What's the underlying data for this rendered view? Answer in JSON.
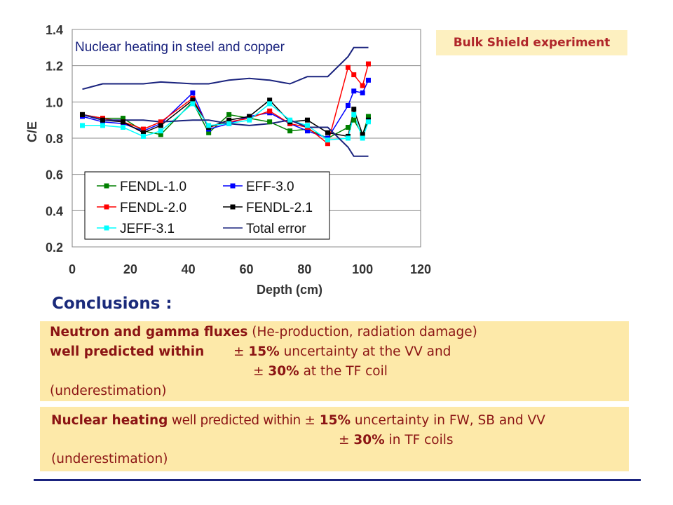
{
  "badge": "Bulk Shield experiment",
  "chart_data": {
    "type": "line",
    "title": "Nuclear heating in steel and copper",
    "xlabel": "Depth (cm)",
    "ylabel": "C/E",
    "xlim": [
      0,
      120
    ],
    "ylim": [
      0.2,
      1.4
    ],
    "xticks": [
      "0",
      "20",
      "40",
      "60",
      "80",
      "100",
      "120"
    ],
    "yticks": [
      "0.2",
      "0.4",
      "0.6",
      "0.8",
      "1.0",
      "1.2",
      "1.4"
    ],
    "grid": "horizontal",
    "legend_position": "bottom-left",
    "series": [
      {
        "name": "FENDL-1.0",
        "color": "#008000",
        "marker": "square",
        "x": [
          3.5,
          10.5,
          17.5,
          24.5,
          30.5,
          41.5,
          47,
          54,
          61,
          68,
          75,
          81,
          88,
          95,
          97,
          100,
          102
        ],
        "y": [
          0.93,
          0.91,
          0.91,
          0.84,
          0.82,
          1.0,
          0.83,
          0.93,
          0.91,
          0.89,
          0.84,
          0.85,
          0.8,
          0.86,
          0.9,
          0.82,
          0.92
        ]
      },
      {
        "name": "EFF-3.0",
        "color": "#0000ff",
        "marker": "square",
        "x": [
          3.5,
          10.5,
          17.5,
          24.5,
          30.5,
          41.5,
          47,
          54,
          61,
          68,
          75,
          81,
          88,
          95,
          97,
          100,
          102
        ],
        "y": [
          0.92,
          0.89,
          0.88,
          0.84,
          0.88,
          1.05,
          0.85,
          0.88,
          0.92,
          0.94,
          0.88,
          0.84,
          0.8,
          0.98,
          1.06,
          1.05,
          1.12
        ]
      },
      {
        "name": "FENDL-2.0",
        "color": "#ff0000",
        "marker": "square",
        "x": [
          3.5,
          10.5,
          17.5,
          24.5,
          30.5,
          41.5,
          47,
          54,
          61,
          68,
          75,
          81,
          88,
          95,
          97,
          100,
          102
        ],
        "y": [
          0.93,
          0.91,
          0.89,
          0.85,
          0.89,
          1.02,
          0.86,
          0.89,
          0.91,
          0.95,
          0.88,
          0.86,
          0.77,
          1.19,
          1.15,
          1.09,
          1.21
        ]
      },
      {
        "name": "FENDL-2.1",
        "color": "#000000",
        "marker": "square",
        "x": [
          3.5,
          10.5,
          17.5,
          24.5,
          30.5,
          41.5,
          47,
          54,
          61,
          68,
          75,
          81,
          88,
          95,
          97,
          100,
          102
        ],
        "y": [
          0.93,
          0.9,
          0.89,
          0.83,
          0.87,
          1.01,
          0.86,
          0.9,
          0.92,
          1.01,
          0.89,
          0.9,
          0.83,
          0.81,
          0.96,
          0.82,
          0.9
        ]
      },
      {
        "name": "JEFF-3.1",
        "color": "#00ffff",
        "marker": "square",
        "x": [
          3.5,
          10.5,
          17.5,
          24.5,
          30.5,
          41.5,
          47,
          54,
          61,
          68,
          75,
          81,
          88,
          95,
          97,
          100,
          102
        ],
        "y": [
          0.87,
          0.87,
          0.86,
          0.81,
          0.84,
          0.99,
          0.87,
          0.88,
          0.9,
          0.99,
          0.9,
          0.87,
          0.79,
          0.8,
          0.93,
          0.8,
          0.89
        ]
      },
      {
        "name": "Total error",
        "color": "#1a237e",
        "marker": "none",
        "x": [
          3.5,
          10.5,
          17.5,
          24.5,
          30.5,
          41.5,
          47,
          54,
          61,
          68,
          75,
          81,
          88,
          95,
          97,
          100,
          102
        ],
        "y": [
          1.07,
          1.1,
          1.1,
          1.1,
          1.11,
          1.1,
          1.1,
          1.12,
          1.13,
          1.12,
          1.1,
          1.14,
          1.14,
          1.25,
          1.3,
          1.3,
          1.3
        ]
      },
      {
        "name": "",
        "color": "#1a237e",
        "marker": "none",
        "x": [
          3.5,
          10.5,
          17.5,
          24.5,
          30.5,
          41.5,
          47,
          54,
          61,
          68,
          75,
          81,
          88,
          95,
          97,
          100,
          102
        ],
        "y": [
          0.93,
          0.9,
          0.9,
          0.9,
          0.89,
          0.9,
          0.9,
          0.88,
          0.87,
          0.88,
          0.9,
          0.86,
          0.86,
          0.75,
          0.7,
          0.7,
          0.7
        ]
      }
    ]
  },
  "conclusions": {
    "title": "Conclusions :",
    "box1": {
      "l1_bold": "Neutron and gamma fluxes",
      "l1_rest": " (He-production, radiation damage)",
      "l2_bold": "well predicted within",
      "pm": "±",
      "l2_val": "15%",
      "l2_rest": " uncertainty at the VV and",
      "l3_val": "30%",
      "l3_rest": " at the TF coil",
      "l4": "(underestimation)"
    },
    "box2": {
      "l1_bold": "Nuclear heating",
      "l1_mid": " well predicted within ",
      "pm": "±",
      "l1_val": "15%",
      "l1_rest": " uncertainty in FW, SB and VV",
      "l2_val": "30%",
      "l2_rest": " in TF coils",
      "l3": "(underestimation)"
    }
  }
}
